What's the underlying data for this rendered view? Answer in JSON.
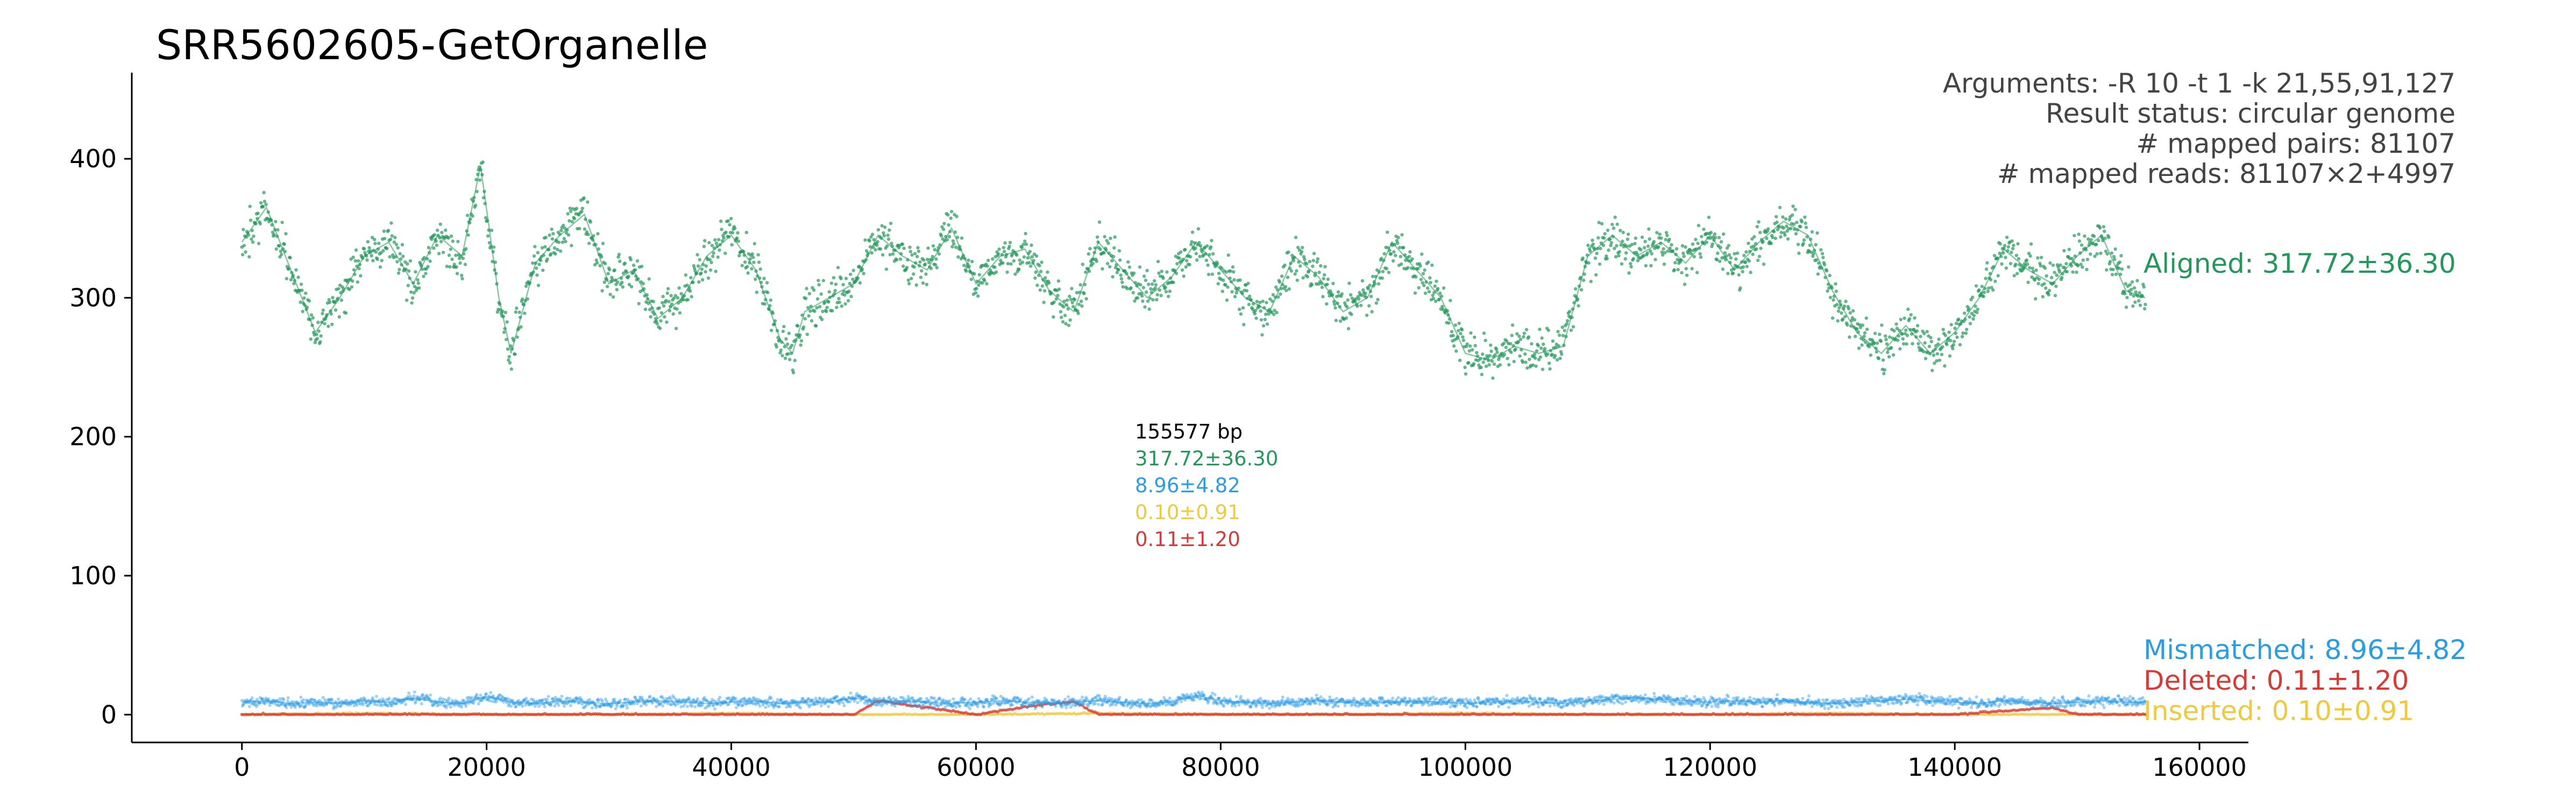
{
  "chart_data": {
    "type": "scatter",
    "title": "SRR5602605-GetOrganelle",
    "xlabel": "",
    "ylabel": "",
    "xlim": [
      -9000,
      164000
    ],
    "ylim": [
      -20,
      462
    ],
    "xticks": [
      0,
      20000,
      40000,
      60000,
      80000,
      100000,
      120000,
      140000,
      160000
    ],
    "xtick_labels": [
      "0",
      "20000",
      "40000",
      "60000",
      "80000",
      "100000",
      "120000",
      "140000",
      "160000"
    ],
    "yticks": [
      0,
      100,
      200,
      300,
      400
    ],
    "ytick_labels": [
      "0",
      "100",
      "200",
      "300",
      "400"
    ],
    "info_lines": [
      "Arguments: -R 10 -t 1 -k 21,55,91,127",
      "Result status: circular genome",
      "# mapped pairs: 81107",
      "# mapped reads: 81107×2+4997"
    ],
    "series_labels": [
      {
        "text": "Aligned: 317.72±36.30",
        "color": "#22995a",
        "y": 325
      },
      {
        "text": "Mismatched: 8.96±4.82",
        "color": "#2b9ce6",
        "y": 47
      },
      {
        "text": "Deleted: 0.11±1.20",
        "color": "#d93a33",
        "y": 25
      },
      {
        "text": "Inserted: 0.10±0.91",
        "color": "#f0c93f",
        "y": 3
      }
    ],
    "stats_block": [
      {
        "text": "155577 bp",
        "color": "#000000"
      },
      {
        "text": "317.72±36.30",
        "color": "#22995a"
      },
      {
        "text": "8.96±4.82",
        "color": "#2b9ce6"
      },
      {
        "text": "0.10±0.91",
        "color": "#f0c93f"
      },
      {
        "text": "0.11±1.20",
        "color": "#d93a33"
      }
    ],
    "genome_length": 155577,
    "series": [
      {
        "name": "Aligned",
        "color": "#22995a",
        "x": [
          0,
          2000,
          4000,
          6000,
          8000,
          10000,
          12000,
          14000,
          16000,
          18000,
          19500,
          21000,
          22000,
          24000,
          26000,
          28000,
          30000,
          32000,
          34000,
          36000,
          38000,
          40000,
          42000,
          44000,
          45000,
          46000,
          48000,
          50000,
          52000,
          54000,
          56000,
          58000,
          60000,
          62000,
          64000,
          66000,
          68000,
          70000,
          72000,
          74000,
          76000,
          78000,
          80000,
          82000,
          84000,
          86000,
          88000,
          90000,
          92000,
          94000,
          96000,
          98000,
          100000,
          102000,
          104000,
          106000,
          108000,
          110000,
          112000,
          114000,
          116000,
          118000,
          120000,
          122000,
          124000,
          126000,
          128000,
          130000,
          132000,
          134000,
          136000,
          138000,
          140000,
          142000,
          144000,
          146000,
          148000,
          150000,
          152000,
          154000,
          155577
        ],
        "values": [
          340,
          365,
          320,
          275,
          300,
          330,
          340,
          310,
          345,
          330,
          395,
          300,
          260,
          325,
          345,
          360,
          310,
          320,
          285,
          300,
          330,
          345,
          320,
          270,
          260,
          290,
          300,
          310,
          345,
          330,
          320,
          350,
          310,
          330,
          335,
          305,
          290,
          340,
          320,
          300,
          315,
          340,
          320,
          300,
          290,
          330,
          315,
          290,
          300,
          340,
          320,
          300,
          260,
          255,
          265,
          260,
          265,
          330,
          345,
          330,
          340,
          325,
          345,
          320,
          340,
          355,
          345,
          305,
          275,
          260,
          280,
          260,
          275,
          300,
          335,
          320,
          310,
          330,
          345,
          305,
          300
        ],
        "mean": 317.72,
        "sd": 36.3
      },
      {
        "name": "Mismatched",
        "color": "#2b9ce6",
        "x": [
          0,
          2000,
          4000,
          6000,
          8000,
          10000,
          12000,
          14000,
          16000,
          18000,
          20000,
          22000,
          24000,
          26000,
          28000,
          30000,
          32000,
          34000,
          36000,
          38000,
          40000,
          42000,
          44000,
          46000,
          48000,
          50000,
          52000,
          54000,
          56000,
          58000,
          60000,
          62000,
          64000,
          66000,
          68000,
          70000,
          72000,
          74000,
          76000,
          78000,
          80000,
          82000,
          84000,
          86000,
          88000,
          90000,
          92000,
          94000,
          96000,
          98000,
          100000,
          102000,
          104000,
          106000,
          108000,
          110000,
          112000,
          114000,
          116000,
          118000,
          120000,
          122000,
          124000,
          126000,
          128000,
          130000,
          132000,
          134000,
          136000,
          138000,
          140000,
          142000,
          144000,
          146000,
          148000,
          150000,
          152000,
          154000,
          155577
        ],
        "values": [
          9,
          10,
          8,
          9,
          8,
          10,
          9,
          12,
          9,
          8,
          13,
          9,
          8,
          10,
          9,
          8,
          9,
          10,
          9,
          8,
          9,
          10,
          8,
          9,
          9,
          12,
          9,
          10,
          9,
          8,
          9,
          10,
          9,
          8,
          9,
          10,
          9,
          8,
          9,
          14,
          10,
          9,
          8,
          9,
          10,
          9,
          8,
          9,
          10,
          9,
          8,
          9,
          10,
          9,
          8,
          10,
          11,
          12,
          11,
          10,
          9,
          10,
          9,
          10,
          9,
          8,
          9,
          10,
          11,
          10,
          9,
          8,
          10,
          9,
          8,
          9,
          10,
          9,
          9
        ],
        "mean": 8.96,
        "sd": 4.82
      },
      {
        "name": "Deleted",
        "color": "#d93a33",
        "x": [
          0,
          10000,
          20000,
          30000,
          40000,
          50000,
          52000,
          60000,
          66000,
          68000,
          70000,
          80000,
          90000,
          100000,
          110000,
          120000,
          130000,
          140000,
          148000,
          150000,
          155577
        ],
        "values": [
          0,
          0,
          0,
          0,
          0,
          0,
          10,
          0,
          8,
          9,
          0,
          0,
          0,
          0,
          0,
          0,
          0,
          0,
          5,
          0,
          0
        ],
        "mean": 0.11,
        "sd": 1.2
      },
      {
        "name": "Inserted",
        "color": "#f0c93f",
        "x": [
          0,
          10000,
          20000,
          30000,
          40000,
          50000,
          60000,
          70000,
          80000,
          90000,
          100000,
          110000,
          120000,
          130000,
          140000,
          150000,
          155577
        ],
        "values": [
          0,
          1,
          0,
          0,
          1,
          0,
          0,
          1,
          0,
          0,
          1,
          0,
          0,
          1,
          0,
          0,
          0
        ],
        "mean": 0.1,
        "sd": 0.91
      }
    ]
  }
}
